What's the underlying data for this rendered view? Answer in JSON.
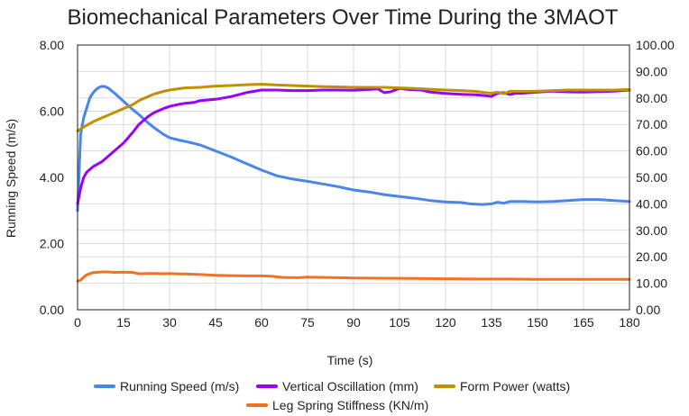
{
  "chart_data": {
    "type": "line",
    "title": "Biomechanical Parameters Over Time During the 3MAOT",
    "xlabel": "Time (s)",
    "ylabel": "Running Speed (m/s)",
    "y2label": "",
    "xlim": [
      0,
      180
    ],
    "ylim": [
      0,
      8
    ],
    "y2lim": [
      0,
      100
    ],
    "x_ticks": [
      "0",
      "15",
      "30",
      "45",
      "60",
      "75",
      "90",
      "105",
      "120",
      "135",
      "150",
      "165",
      "180"
    ],
    "y_ticks": [
      "0.00",
      "2.00",
      "4.00",
      "6.00",
      "8.00"
    ],
    "y2_ticks": [
      "0.00",
      "10.00",
      "20.00",
      "30.00",
      "40.00",
      "50.00",
      "60.00",
      "70.00",
      "80.00",
      "90.00",
      "100.00"
    ],
    "grid": true,
    "legend_position": "bottom",
    "series": [
      {
        "name": "Running Speed (m/s)",
        "axis": "left",
        "color": "#4a86e8",
        "points": [
          [
            0,
            3.0
          ],
          [
            1,
            5.3
          ],
          [
            2,
            5.8
          ],
          [
            3,
            6.1
          ],
          [
            4,
            6.4
          ],
          [
            5,
            6.55
          ],
          [
            6,
            6.65
          ],
          [
            7,
            6.72
          ],
          [
            8,
            6.75
          ],
          [
            9,
            6.74
          ],
          [
            10,
            6.7
          ],
          [
            12,
            6.55
          ],
          [
            15,
            6.3
          ],
          [
            18,
            6.05
          ],
          [
            20,
            5.9
          ],
          [
            23,
            5.65
          ],
          [
            25,
            5.5
          ],
          [
            28,
            5.3
          ],
          [
            30,
            5.2
          ],
          [
            33,
            5.13
          ],
          [
            36,
            5.07
          ],
          [
            40,
            4.98
          ],
          [
            45,
            4.8
          ],
          [
            50,
            4.62
          ],
          [
            55,
            4.42
          ],
          [
            60,
            4.22
          ],
          [
            65,
            4.05
          ],
          [
            70,
            3.95
          ],
          [
            75,
            3.88
          ],
          [
            80,
            3.8
          ],
          [
            85,
            3.72
          ],
          [
            90,
            3.62
          ],
          [
            95,
            3.56
          ],
          [
            100,
            3.48
          ],
          [
            105,
            3.42
          ],
          [
            110,
            3.37
          ],
          [
            115,
            3.3
          ],
          [
            120,
            3.26
          ],
          [
            125,
            3.24
          ],
          [
            128,
            3.2
          ],
          [
            132,
            3.18
          ],
          [
            135,
            3.2
          ],
          [
            137,
            3.25
          ],
          [
            139,
            3.22
          ],
          [
            141,
            3.27
          ],
          [
            145,
            3.27
          ],
          [
            150,
            3.26
          ],
          [
            155,
            3.27
          ],
          [
            160,
            3.3
          ],
          [
            165,
            3.33
          ],
          [
            170,
            3.33
          ],
          [
            175,
            3.3
          ],
          [
            180,
            3.27
          ]
        ]
      },
      {
        "name": "Vertical Oscillation (mm)",
        "axis": "right",
        "color": "#9a00ff",
        "points": [
          [
            0,
            40
          ],
          [
            1,
            46
          ],
          [
            2,
            50
          ],
          [
            3,
            52
          ],
          [
            5,
            54
          ],
          [
            8,
            56
          ],
          [
            10,
            58
          ],
          [
            12,
            60
          ],
          [
            15,
            63
          ],
          [
            18,
            67
          ],
          [
            20,
            70
          ],
          [
            23,
            73
          ],
          [
            25,
            74.5
          ],
          [
            28,
            76
          ],
          [
            30,
            76.8
          ],
          [
            33,
            77.6
          ],
          [
            35,
            78
          ],
          [
            38,
            78.3
          ],
          [
            40,
            79
          ],
          [
            45,
            79.5
          ],
          [
            50,
            80.5
          ],
          [
            55,
            82
          ],
          [
            60,
            83
          ],
          [
            65,
            83
          ],
          [
            70,
            82.8
          ],
          [
            75,
            82.8
          ],
          [
            80,
            83
          ],
          [
            85,
            83
          ],
          [
            90,
            82.9
          ],
          [
            95,
            83.2
          ],
          [
            98,
            83.4
          ],
          [
            100,
            82
          ],
          [
            102,
            82.3
          ],
          [
            105,
            83.6
          ],
          [
            108,
            83.2
          ],
          [
            112,
            83
          ],
          [
            115,
            82.2
          ],
          [
            120,
            81.7
          ],
          [
            125,
            81.4
          ],
          [
            130,
            81.2
          ],
          [
            133,
            80.9
          ],
          [
            135,
            80.6
          ],
          [
            137,
            81.8
          ],
          [
            139,
            82
          ],
          [
            141,
            81.3
          ],
          [
            143,
            81.8
          ],
          [
            145,
            81.8
          ],
          [
            150,
            82.2
          ],
          [
            155,
            82.6
          ],
          [
            160,
            82.3
          ],
          [
            165,
            82.2
          ],
          [
            170,
            82.4
          ],
          [
            175,
            82.6
          ],
          [
            180,
            83
          ]
        ]
      },
      {
        "name": "Form Power (watts)",
        "axis": "right",
        "color": "#bf9000",
        "points": [
          [
            0,
            67.5
          ],
          [
            2,
            69
          ],
          [
            5,
            71
          ],
          [
            8,
            72.5
          ],
          [
            10,
            73.5
          ],
          [
            12,
            74.5
          ],
          [
            15,
            76
          ],
          [
            18,
            77.5
          ],
          [
            20,
            79
          ],
          [
            23,
            80.5
          ],
          [
            25,
            81.5
          ],
          [
            28,
            82.5
          ],
          [
            30,
            83
          ],
          [
            33,
            83.5
          ],
          [
            35,
            83.8
          ],
          [
            40,
            84
          ],
          [
            45,
            84.5
          ],
          [
            50,
            84.7
          ],
          [
            55,
            85
          ],
          [
            60,
            85.2
          ],
          [
            65,
            84.9
          ],
          [
            70,
            84.7
          ],
          [
            75,
            84.5
          ],
          [
            80,
            84.3
          ],
          [
            85,
            84.2
          ],
          [
            90,
            84
          ],
          [
            95,
            84
          ],
          [
            100,
            84
          ],
          [
            105,
            83.8
          ],
          [
            110,
            83.6
          ],
          [
            115,
            83.3
          ],
          [
            120,
            83
          ],
          [
            125,
            82.8
          ],
          [
            130,
            82.5
          ],
          [
            133,
            82
          ],
          [
            135,
            81.8
          ],
          [
            137,
            82.2
          ],
          [
            139,
            81.6
          ],
          [
            141,
            82.6
          ],
          [
            145,
            82.5
          ],
          [
            150,
            82.6
          ],
          [
            155,
            82.8
          ],
          [
            160,
            83
          ],
          [
            165,
            83
          ],
          [
            170,
            83
          ],
          [
            175,
            83
          ],
          [
            180,
            83.2
          ]
        ]
      },
      {
        "name": "Leg Spring Stiffness (KN/m)",
        "axis": "right",
        "color": "#f4711f",
        "points": [
          [
            0,
            10.8
          ],
          [
            1,
            11.2
          ],
          [
            2,
            12.3
          ],
          [
            3,
            13.2
          ],
          [
            5,
            14
          ],
          [
            8,
            14.3
          ],
          [
            10,
            14.3
          ],
          [
            12,
            14.1
          ],
          [
            15,
            14.2
          ],
          [
            18,
            14.1
          ],
          [
            20,
            13.6
          ],
          [
            23,
            13.7
          ],
          [
            25,
            13.7
          ],
          [
            28,
            13.6
          ],
          [
            30,
            13.7
          ],
          [
            33,
            13.5
          ],
          [
            35,
            13.5
          ],
          [
            40,
            13.3
          ],
          [
            45,
            13
          ],
          [
            50,
            12.9
          ],
          [
            55,
            12.8
          ],
          [
            60,
            12.8
          ],
          [
            63,
            12.7
          ],
          [
            67,
            12.2
          ],
          [
            72,
            12.1
          ],
          [
            75,
            12.3
          ],
          [
            80,
            12.2
          ],
          [
            90,
            12
          ],
          [
            100,
            11.9
          ],
          [
            110,
            11.8
          ],
          [
            120,
            11.7
          ],
          [
            130,
            11.6
          ],
          [
            140,
            11.6
          ],
          [
            150,
            11.5
          ],
          [
            160,
            11.5
          ],
          [
            170,
            11.5
          ],
          [
            180,
            11.5
          ]
        ]
      }
    ]
  }
}
